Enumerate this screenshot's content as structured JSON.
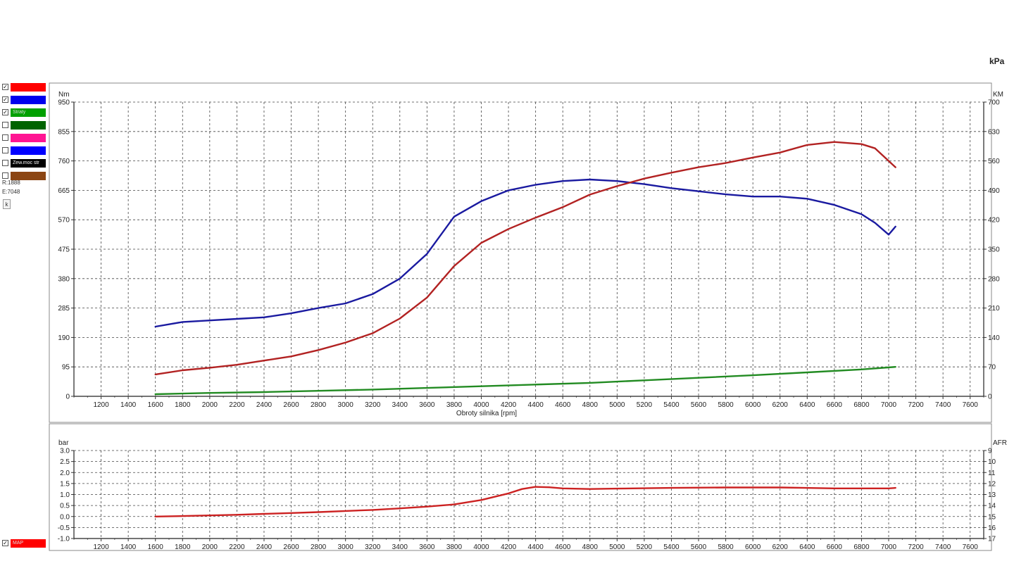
{
  "legend": {
    "items": [
      {
        "checked": true,
        "label": "",
        "color": "#ff0000"
      },
      {
        "checked": true,
        "label": "",
        "color": "#0000ee"
      },
      {
        "checked": true,
        "label": "Straty",
        "color": "#00a000"
      },
      {
        "checked": false,
        "label": "",
        "color": "#006400"
      },
      {
        "checked": false,
        "label": "",
        "color": "#ff1493"
      },
      {
        "checked": false,
        "label": "",
        "color": "#0000ff"
      },
      {
        "checked": false,
        "label": "Zew.moc str",
        "color": "#000000"
      },
      {
        "checked": false,
        "label": "",
        "color": "#8b4513"
      }
    ],
    "map_item": {
      "checked": true,
      "label": "MAP",
      "color": "#ff0000"
    },
    "info_r": "R:1888",
    "info_e": "E:7048",
    "button_label": "k",
    "check_mark": "✓"
  },
  "top_right_unit": "kPa",
  "chart_data": [
    {
      "type": "line",
      "xlabel": "Obroty silnika [rpm]",
      "ylabel_left": "Nm",
      "ylabel_right": "KM",
      "xlim": [
        1000,
        7700
      ],
      "ylim_left": [
        0,
        950
      ],
      "ylim_right": [
        0,
        700
      ],
      "x_ticks": [
        "1200",
        "1400",
        "1600",
        "1800",
        "2000",
        "2200",
        "2400",
        "2600",
        "2800",
        "3000",
        "3200",
        "3400",
        "3600",
        "3800",
        "4000",
        "4200",
        "4400",
        "4600",
        "4800",
        "5000",
        "5200",
        "5400",
        "5600",
        "5800",
        "6000",
        "6200",
        "6400",
        "6600",
        "6800",
        "7000",
        "7200",
        "7400",
        "7600"
      ],
      "y_ticks_left": [
        "0",
        "95",
        "190",
        "285",
        "380",
        "475",
        "570",
        "665",
        "760",
        "855",
        "950"
      ],
      "y_ticks_right": [
        "0",
        "70",
        "140",
        "210",
        "280",
        "350",
        "420",
        "490",
        "560",
        "630",
        "700"
      ],
      "grid": true,
      "series": [
        {
          "color": "#1a1aa0",
          "axis": "left",
          "x": [
            1600,
            1800,
            2000,
            2200,
            2400,
            2600,
            2800,
            3000,
            3200,
            3400,
            3600,
            3800,
            4000,
            4200,
            4400,
            4600,
            4800,
            5000,
            5200,
            5400,
            5600,
            5800,
            6000,
            6200,
            6400,
            6600,
            6800,
            6900,
            7000,
            7050
          ],
          "y": [
            225,
            240,
            245,
            250,
            255,
            268,
            285,
            300,
            330,
            380,
            460,
            580,
            630,
            665,
            683,
            695,
            700,
            695,
            685,
            672,
            662,
            652,
            645,
            645,
            638,
            618,
            588,
            560,
            522,
            548
          ]
        },
        {
          "color": "#b22222",
          "axis": "right",
          "x": [
            1600,
            1800,
            2000,
            2200,
            2400,
            2600,
            2800,
            3000,
            3200,
            3400,
            3600,
            3800,
            4000,
            4200,
            4400,
            4600,
            4800,
            5000,
            5200,
            5400,
            5600,
            5800,
            6000,
            6200,
            6400,
            6600,
            6800,
            6900,
            7000,
            7050
          ],
          "y": [
            52,
            62,
            68,
            75,
            85,
            95,
            110,
            128,
            150,
            185,
            235,
            310,
            365,
            398,
            425,
            450,
            480,
            500,
            518,
            532,
            545,
            555,
            568,
            580,
            598,
            605,
            600,
            590,
            560,
            545
          ]
        },
        {
          "color": "#228b22",
          "axis": "right",
          "x": [
            1600,
            2000,
            2400,
            2800,
            3200,
            3600,
            4000,
            4400,
            4800,
            5200,
            5600,
            6000,
            6400,
            6800,
            7050
          ],
          "y": [
            5,
            8,
            10,
            13,
            16,
            20,
            24,
            28,
            32,
            38,
            44,
            50,
            57,
            64,
            70
          ]
        }
      ]
    },
    {
      "type": "line",
      "ylabel_left": "bar",
      "ylabel_right": "AFR",
      "xlim": [
        1000,
        7700
      ],
      "ylim_left": [
        -1.0,
        3.0
      ],
      "y_ticks_left": [
        "3.0",
        "2.5",
        "2.0",
        "1.5",
        "1.0",
        "0.5",
        "0.0",
        "-0.5",
        "-1.0"
      ],
      "y_ticks_right": [
        "9",
        "10",
        "11",
        "12",
        "13",
        "14",
        "15",
        "16",
        "17"
      ],
      "x_ticks": [
        "1200",
        "1400",
        "1600",
        "1800",
        "2000",
        "2200",
        "2400",
        "2600",
        "2800",
        "3000",
        "3200",
        "3400",
        "3600",
        "3800",
        "4000",
        "4200",
        "4400",
        "4600",
        "4800",
        "5000",
        "5200",
        "5400",
        "5600",
        "5800",
        "6000",
        "6200",
        "6400",
        "6600",
        "6800",
        "7000",
        "7200",
        "7400",
        "7600"
      ],
      "grid": true,
      "series": [
        {
          "name": "MAP",
          "color": "#cc2222",
          "axis": "left",
          "x": [
            1600,
            1800,
            2000,
            2200,
            2400,
            2600,
            2800,
            3000,
            3200,
            3400,
            3600,
            3800,
            4000,
            4200,
            4300,
            4400,
            4500,
            4600,
            4800,
            5000,
            5400,
            5800,
            6200,
            6600,
            7000,
            7050
          ],
          "y": [
            0.0,
            0.02,
            0.05,
            0.08,
            0.12,
            0.16,
            0.2,
            0.25,
            0.3,
            0.37,
            0.45,
            0.55,
            0.75,
            1.05,
            1.25,
            1.35,
            1.33,
            1.28,
            1.25,
            1.27,
            1.3,
            1.32,
            1.32,
            1.28,
            1.28,
            1.3
          ]
        }
      ]
    }
  ]
}
